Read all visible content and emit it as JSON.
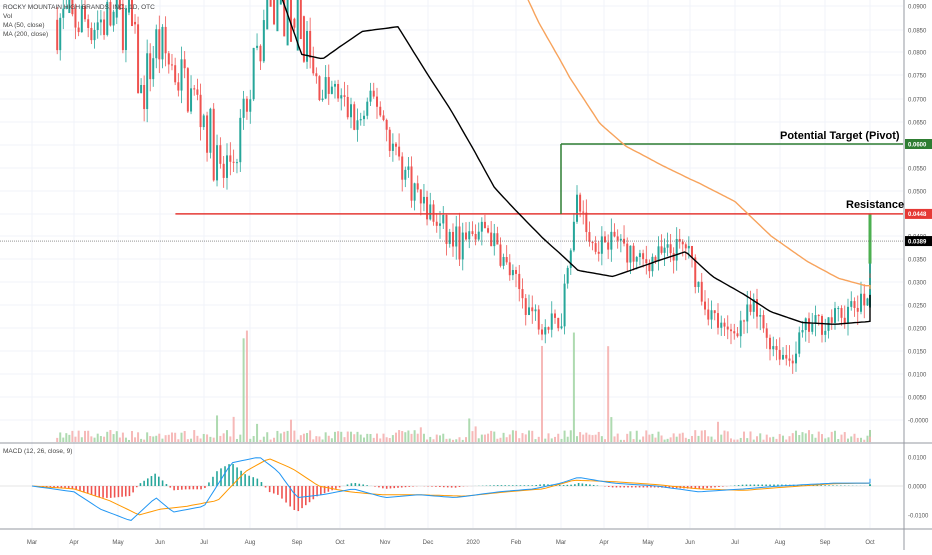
{
  "legend": {
    "title": "ROCKY MOUNTAIN HIGH BRANDS, INC., 1D, OTC",
    "vol": "Vol",
    "ma50": "MA (50, close)",
    "ma200": "MA (200, close)"
  },
  "macd_legend": "MACD (12, 26, close, 9)",
  "annotations": {
    "target": "Potential Target (Pivot)",
    "resistance": "Resistance"
  },
  "colors": {
    "up": "#26a69a",
    "up_bright": "#4caf50",
    "down": "#ef5350",
    "ma50": "#000000",
    "ma200": "#f7a35c",
    "resistance": "#e53935",
    "target": "#2e7d32",
    "macd_line": "#2196f3",
    "signal_line": "#ff9800"
  },
  "chart_data": [
    {
      "type": "candlestick",
      "title": "ROCKY MOUNTAIN HIGH BRANDS, INC., 1D, OTC",
      "x_tick_labels": [
        "Mar",
        "Apr",
        "May",
        "Jun",
        "Jul",
        "Aug",
        "Sep",
        "Oct",
        "Nov",
        "Dec",
        "2020",
        "Feb",
        "Mar",
        "Apr",
        "May",
        "Jun",
        "Jul",
        "Aug",
        "Sep",
        "Oct"
      ],
      "y_tick_labels": [
        "0.0900",
        "0.0850",
        "0.0800",
        "0.0750",
        "0.0700",
        "0.0650",
        "0.0600",
        "0.0550",
        "0.0500",
        "0.0450",
        "0.0400",
        "0.0350",
        "0.0300",
        "0.0250",
        "0.0200",
        "0.0150",
        "0.0100",
        "0.0050",
        "-0.0000"
      ],
      "ylim": [
        -0.002,
        0.092
      ],
      "price_badges": {
        "target": "0.0600",
        "resistance": "0.0448",
        "last": "0.0389"
      },
      "levels": {
        "target": 0.06,
        "resistance": 0.0448,
        "last": 0.0389
      },
      "ma50_keypoints": [
        [
          5.6,
          0.094
        ],
        [
          6.1,
          0.0795
        ],
        [
          6.6,
          0.0785
        ],
        [
          7.5,
          0.0845
        ],
        [
          8.3,
          0.0855
        ],
        [
          9.5,
          0.0675
        ],
        [
          10.5,
          0.0505
        ],
        [
          11.6,
          0.0395
        ],
        [
          12.4,
          0.0325
        ],
        [
          13.2,
          0.0312
        ],
        [
          14.2,
          0.0345
        ],
        [
          14.9,
          0.0366
        ],
        [
          15.5,
          0.0312
        ],
        [
          16.2,
          0.0273
        ],
        [
          16.8,
          0.0235
        ],
        [
          17.5,
          0.0212
        ],
        [
          18.2,
          0.0208
        ],
        [
          19.1,
          0.0215
        ],
        [
          19.9,
          0.0242
        ],
        [
          20.2,
          0.0272
        ]
      ],
      "ma200_keypoints": [
        [
          11.0,
          0.097
        ],
        [
          11.5,
          0.0865
        ],
        [
          12.2,
          0.0745
        ],
        [
          12.9,
          0.0645
        ],
        [
          13.5,
          0.0595
        ],
        [
          14.3,
          0.0555
        ],
        [
          15.2,
          0.0515
        ],
        [
          16.0,
          0.0475
        ],
        [
          16.8,
          0.04
        ],
        [
          17.6,
          0.0345
        ],
        [
          18.3,
          0.0308
        ],
        [
          18.9,
          0.0292
        ],
        [
          19.3,
          0.0292
        ],
        [
          19.9,
          0.0285
        ],
        [
          20.2,
          0.0285
        ]
      ],
      "price_path": [
        [
          0.6,
          0.087
        ],
        [
          2.3,
          0.087
        ],
        [
          2.55,
          0.07
        ],
        [
          2.9,
          0.082
        ],
        [
          3.5,
          0.074
        ],
        [
          4.0,
          0.066
        ],
        [
          4.4,
          0.052
        ],
        [
          4.8,
          0.062
        ],
        [
          5.3,
          0.086
        ],
        [
          5.6,
          0.092
        ],
        [
          6.0,
          0.091
        ],
        [
          6.4,
          0.073
        ],
        [
          6.9,
          0.071
        ],
        [
          7.4,
          0.064
        ],
        [
          7.8,
          0.07
        ],
        [
          8.2,
          0.059
        ],
        [
          8.8,
          0.048
        ],
        [
          9.4,
          0.04
        ],
        [
          9.8,
          0.038
        ],
        [
          10.3,
          0.042
        ],
        [
          10.8,
          0.033
        ],
        [
          11.3,
          0.024
        ],
        [
          11.7,
          0.02
        ],
        [
          12.0,
          0.022
        ],
        [
          12.2,
          0.038
        ],
        [
          12.4,
          0.048
        ],
        [
          12.7,
          0.038
        ],
        [
          13.2,
          0.04
        ],
        [
          13.8,
          0.034
        ],
        [
          14.4,
          0.036
        ],
        [
          14.9,
          0.038
        ],
        [
          15.3,
          0.026
        ],
        [
          15.8,
          0.018
        ],
        [
          16.4,
          0.024
        ],
        [
          16.8,
          0.017
        ],
        [
          17.2,
          0.013
        ],
        [
          17.6,
          0.02
        ],
        [
          18.2,
          0.022
        ],
        [
          18.8,
          0.025
        ],
        [
          19.3,
          0.03
        ],
        [
          19.8,
          0.034
        ],
        [
          20.1,
          0.039
        ]
      ]
    },
    {
      "type": "bar",
      "title": "Vol",
      "description_values": "volume per bar, relative units",
      "spike_positions": [
        4.9,
        11.6,
        12.3,
        13.1
      ]
    },
    {
      "type": "line",
      "title": "MACD (12, 26, close, 9)",
      "y_tick_labels": [
        "0.0100",
        "0.0000",
        "-0.0100"
      ],
      "ylim": [
        -0.014,
        0.011
      ],
      "macd_keypoints": [
        [
          0,
          0.0
        ],
        [
          1.0,
          -0.002
        ],
        [
          1.6,
          -0.008
        ],
        [
          2.3,
          -0.012
        ],
        [
          2.9,
          -0.004
        ],
        [
          3.3,
          -0.009
        ],
        [
          4.0,
          -0.007
        ],
        [
          4.6,
          0.008
        ],
        [
          5.2,
          0.01
        ],
        [
          5.6,
          0.005
        ],
        [
          6.0,
          -0.004
        ],
        [
          6.6,
          -0.003
        ],
        [
          7.3,
          -0.001
        ],
        [
          8.0,
          -0.004
        ],
        [
          8.8,
          -0.003
        ],
        [
          9.6,
          -0.004
        ],
        [
          10.6,
          -0.002
        ],
        [
          11.4,
          -0.001
        ],
        [
          12.0,
          0.001
        ],
        [
          12.4,
          0.003
        ],
        [
          13.2,
          0.001
        ],
        [
          14.2,
          0.0
        ],
        [
          15.2,
          -0.002
        ],
        [
          16.2,
          -0.001
        ],
        [
          17.0,
          0.0
        ],
        [
          18.2,
          0.001
        ],
        [
          19.0,
          0.001
        ],
        [
          19.5,
          0.002
        ],
        [
          20.1,
          0.0025
        ]
      ],
      "signal_keypoints": [
        [
          0,
          0.0
        ],
        [
          1.0,
          -0.001
        ],
        [
          1.8,
          -0.005
        ],
        [
          2.5,
          -0.01
        ],
        [
          3.0,
          -0.008
        ],
        [
          3.6,
          -0.007
        ],
        [
          4.3,
          -0.005
        ],
        [
          4.9,
          0.005
        ],
        [
          5.4,
          0.0095
        ],
        [
          5.9,
          0.006
        ],
        [
          6.5,
          0.0
        ],
        [
          7.2,
          -0.002
        ],
        [
          7.9,
          -0.003
        ],
        [
          8.8,
          -0.003
        ],
        [
          9.8,
          -0.0035
        ],
        [
          10.8,
          -0.002
        ],
        [
          11.6,
          -0.001
        ],
        [
          12.3,
          0.002
        ],
        [
          13.2,
          0.0015
        ],
        [
          14.2,
          0.0005
        ],
        [
          15.2,
          -0.001
        ],
        [
          16.2,
          -0.0015
        ],
        [
          17.0,
          -0.0005
        ],
        [
          18.2,
          0.0008
        ],
        [
          19.0,
          0.001
        ],
        [
          19.6,
          0.0015
        ],
        [
          20.1,
          0.0022
        ]
      ]
    }
  ]
}
